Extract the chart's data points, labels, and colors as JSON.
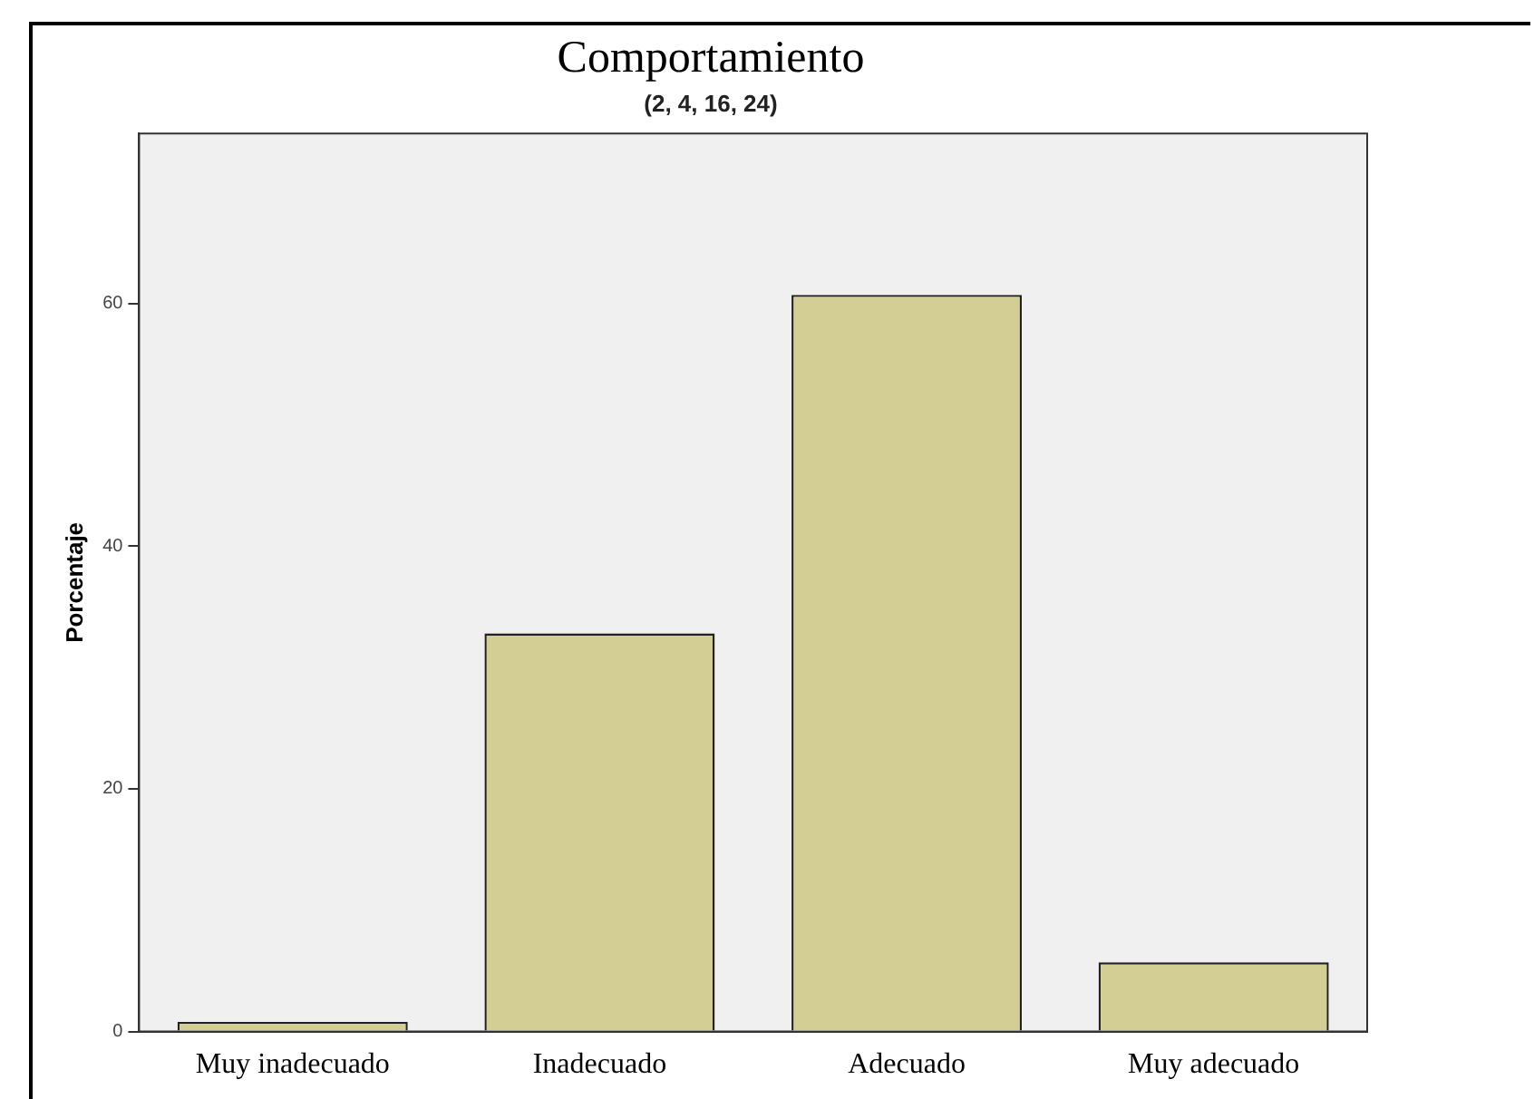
{
  "chart_data": {
    "type": "bar",
    "title": "Comportamiento",
    "subtitle": "(2, 4, 16, 24)",
    "ylabel": "Porcentaje",
    "categories": [
      "Muy inadecuado",
      "Inadecuado",
      "Adecuado",
      "Muy adecuado"
    ],
    "values": [
      0.8,
      32.8,
      60.7,
      5.7
    ],
    "color": "#d3cf94",
    "ylim": [
      0,
      74
    ],
    "yticks": [
      0,
      20,
      40,
      60
    ],
    "grid": false,
    "legend": false
  }
}
